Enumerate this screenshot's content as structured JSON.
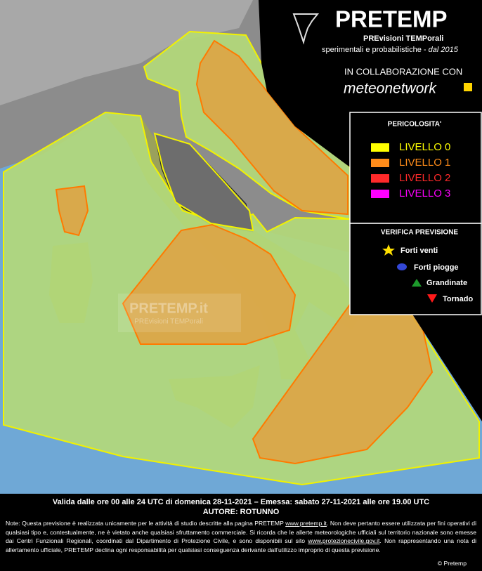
{
  "header": {
    "title": "PRETEMP",
    "subtitle": "PREvisioni TEMPorali",
    "tagline": "sperimentali e probabilistiche -",
    "since": "dal 2015",
    "collab": "IN COLLABORAZIONE CON",
    "partner": "meteonetwork"
  },
  "legend": {
    "title": "PERICOLOSITA'",
    "levels": [
      {
        "label": "LIVELLO 0",
        "color": "#ffff00"
      },
      {
        "label": "LIVELLO 1",
        "color": "#ff8c1a"
      },
      {
        "label": "LIVELLO 2",
        "color": "#ff2a2a"
      },
      {
        "label": "LIVELLO 3",
        "color": "#ff00ff"
      }
    ]
  },
  "verification": {
    "title": "VERIFICA PREVISIONE",
    "items": [
      "Forti venti",
      "Forti piogge",
      "Grandinate",
      "Tornado"
    ]
  },
  "watermark": {
    "title": "PRETEMP.it",
    "subtitle": "PREvisioni TEMPorali"
  },
  "footer": {
    "validity": "Valida dalle ore 00 alle 24 UTC di domenica 28-11-2021 – Emessa: sabato 27-11-2021 alle ore 19.00 UTC",
    "author": "AUTORE: ROTUNNO",
    "note": [
      {
        "text": "Note: Questa previsione è realizzata unicamente per le attività di studio descritte alla pagina PRETEMP "
      },
      {
        "link": "www.pretemp.it"
      },
      {
        "text": ". Non deve pertanto essere utilizzata per fini operativi di qualsiasi tipo e, contestualmente, ne è vietato anche qualsiasi sfruttamento commerciale. Si ricorda che le allerte meteorologiche ufficiali sul territorio nazionale sono emesse dai Centri Funzionali Regionali, coordinati dal Dipartimento di Protezione Civile, e sono disponibili sul sito "
      },
      {
        "link": "www.protezionecivile.gov.it"
      },
      {
        "text": ". Non rappresentando una nota di allertamento ufficiale, PRETEMP declina ogni responsabilità per qualsiasi conseguenza derivante dall’utilizzo improprio di questa previsione."
      }
    ],
    "copyright": "© Pretemp"
  }
}
